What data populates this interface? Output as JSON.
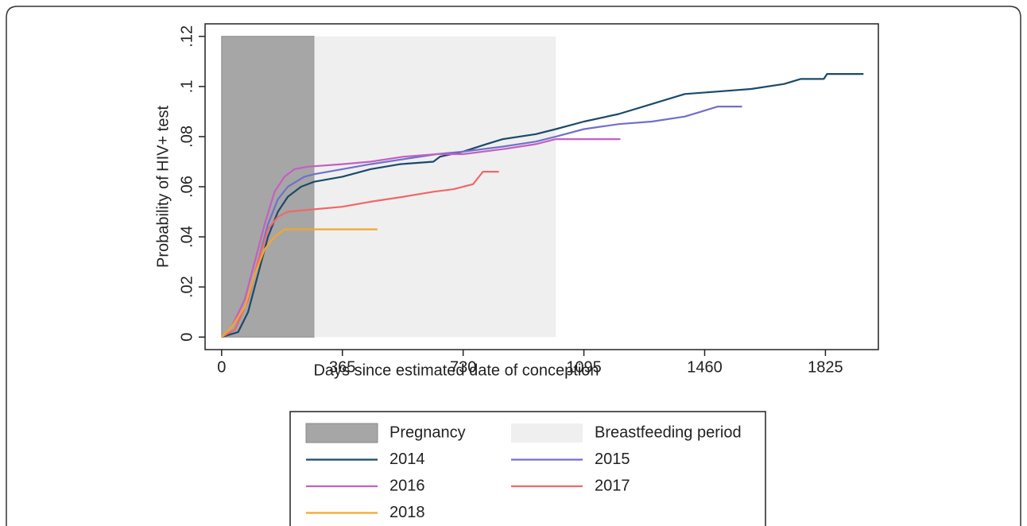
{
  "chart_data": {
    "type": "line",
    "xlabel": "Days since estimated date of conception",
    "ylabel": "Probability of HIV+ test",
    "xlim": [
      -50,
      1985
    ],
    "ylim": [
      -0.005,
      0.125
    ],
    "xticks": [
      0,
      365,
      730,
      1095,
      1460,
      1825
    ],
    "yticks": [
      0,
      {
        "value": 0.02,
        "label": ".02"
      },
      {
        "value": 0.04,
        "label": ".04"
      },
      {
        "value": 0.06,
        "label": ".06"
      },
      {
        "value": 0.08,
        "label": ".08"
      },
      {
        "value": 0.1,
        "label": ".1"
      },
      {
        "value": 0.12,
        "label": ".12"
      }
    ],
    "shaded_regions": [
      {
        "name": "Pregnancy",
        "color": "#a6a6a6",
        "x": [
          0,
          280
        ],
        "y": [
          0,
          0.12
        ]
      },
      {
        "name": "Breastfeeding period",
        "color": "#efefef",
        "x": [
          280,
          1010
        ],
        "y": [
          0,
          0.12
        ]
      }
    ],
    "series": [
      {
        "name": "2014",
        "color": "#1a4a6b",
        "x": [
          0,
          50,
          80,
          110,
          140,
          170,
          200,
          240,
          280,
          365,
          450,
          540,
          640,
          660,
          730,
          800,
          850,
          950,
          1010,
          1095,
          1200,
          1300,
          1400,
          1500,
          1600,
          1700,
          1750,
          1820,
          1830,
          1940
        ],
        "values": [
          0,
          0.002,
          0.01,
          0.025,
          0.04,
          0.05,
          0.056,
          0.06,
          0.062,
          0.064,
          0.067,
          0.069,
          0.07,
          0.072,
          0.074,
          0.077,
          0.079,
          0.081,
          0.083,
          0.086,
          0.089,
          0.093,
          0.097,
          0.098,
          0.099,
          0.101,
          0.103,
          0.103,
          0.105,
          0.105
        ]
      },
      {
        "name": "2015",
        "color": "#7170c9",
        "x": [
          0,
          40,
          80,
          110,
          140,
          170,
          200,
          250,
          280,
          365,
          450,
          550,
          650,
          730,
          850,
          950,
          1010,
          1095,
          1200,
          1300,
          1400,
          1450,
          1500,
          1573
        ],
        "values": [
          0,
          0.003,
          0.015,
          0.03,
          0.045,
          0.055,
          0.06,
          0.064,
          0.065,
          0.067,
          0.069,
          0.071,
          0.073,
          0.074,
          0.076,
          0.078,
          0.08,
          0.083,
          0.085,
          0.086,
          0.088,
          0.09,
          0.092,
          0.092
        ]
      },
      {
        "name": "2016",
        "color": "#c45fc4",
        "x": [
          0,
          30,
          70,
          100,
          130,
          160,
          190,
          220,
          260,
          365,
          450,
          550,
          650,
          730,
          850,
          950,
          1010,
          1205
        ],
        "values": [
          0,
          0.004,
          0.015,
          0.03,
          0.045,
          0.058,
          0.064,
          0.067,
          0.068,
          0.069,
          0.07,
          0.072,
          0.073,
          0.073,
          0.075,
          0.077,
          0.079,
          0.079
        ]
      },
      {
        "name": "2017",
        "color": "#f06868",
        "x": [
          0,
          40,
          80,
          110,
          140,
          170,
          200,
          280,
          365,
          450,
          550,
          640,
          700,
          760,
          790,
          838
        ],
        "values": [
          0,
          0.003,
          0.015,
          0.03,
          0.043,
          0.048,
          0.05,
          0.051,
          0.052,
          0.054,
          0.056,
          0.058,
          0.059,
          0.061,
          0.066,
          0.066
        ]
      },
      {
        "name": "2018",
        "color": "#f5a62a",
        "x": [
          0,
          30,
          70,
          100,
          130,
          160,
          190,
          471
        ],
        "values": [
          0,
          0.004,
          0.012,
          0.025,
          0.035,
          0.04,
          0.043,
          0.043
        ]
      }
    ]
  }
}
